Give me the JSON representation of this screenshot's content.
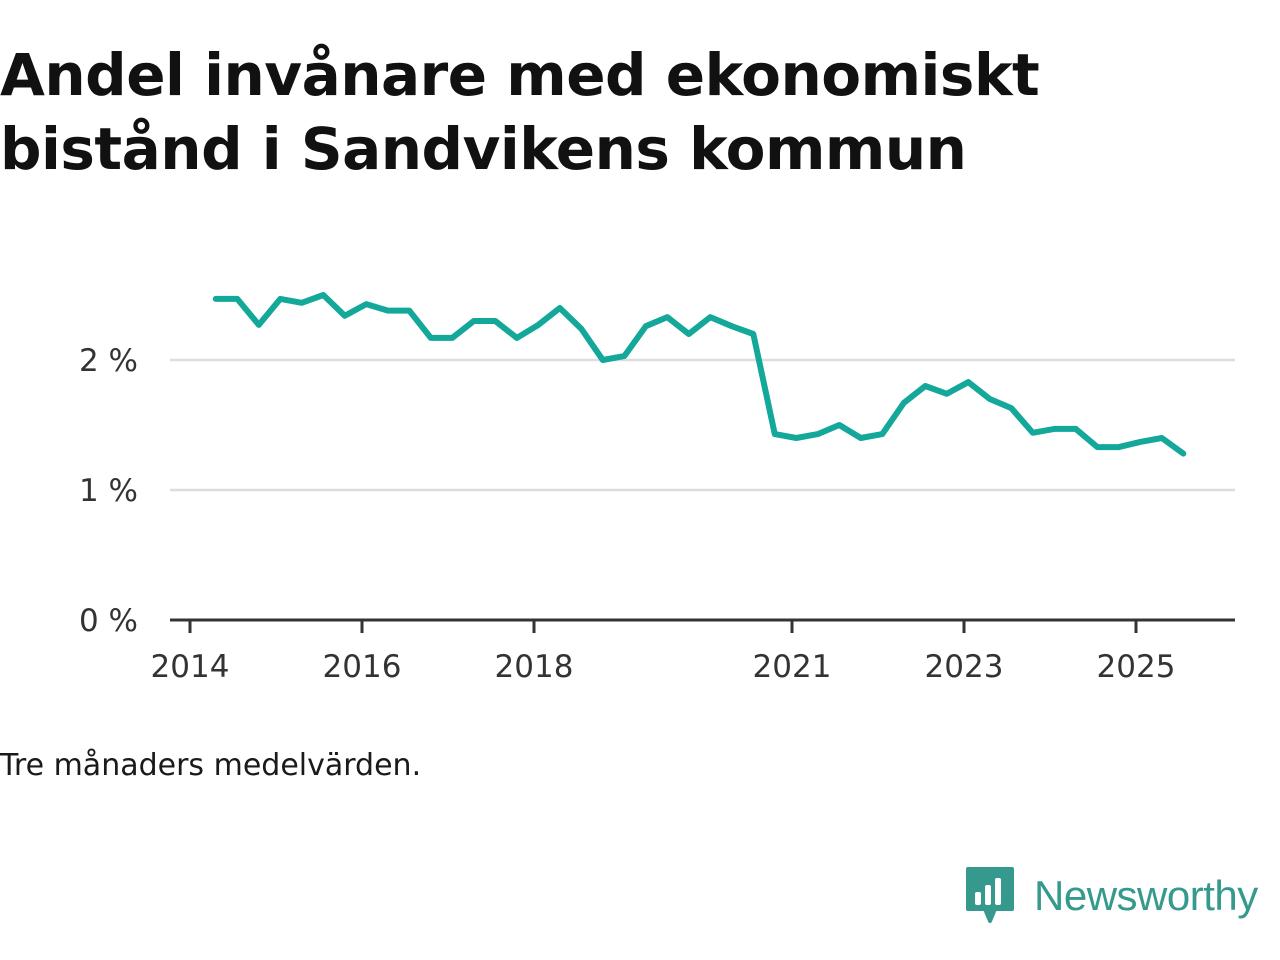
{
  "title": "Andel invånare med ekonomiskt bistånd i Sandvikens kommun",
  "note": "Tre månaders medelvärden.",
  "brand": {
    "name": "Newsworthy",
    "color": "#36998d",
    "icon": "bar-chart-speech-bubble-icon"
  },
  "chart_data": {
    "type": "line",
    "title": "Andel invånare med ekonomiskt bistånd i Sandvikens kommun",
    "xlabel": "",
    "ylabel": "",
    "ylim": [
      0,
      2.5
    ],
    "xlim": [
      2014.0,
      2026.25
    ],
    "grid": true,
    "line_color": "#14a89a",
    "y_ticks": [
      {
        "value": 0,
        "label": "0 %"
      },
      {
        "value": 1,
        "label": "1 %"
      },
      {
        "value": 2,
        "label": "2 %"
      }
    ],
    "x_ticks": [
      {
        "value": 2014,
        "label": "2014"
      },
      {
        "value": 2016,
        "label": "2016"
      },
      {
        "value": 2018,
        "label": "2018"
      },
      {
        "value": 2021,
        "label": "2021"
      },
      {
        "value": 2023,
        "label": "2023"
      },
      {
        "value": 2025,
        "label": "2025"
      }
    ],
    "series": [
      {
        "name": "Andel invånare med ekonomiskt bistånd",
        "x": [
          2014.3,
          2014.55,
          2014.8,
          2015.05,
          2015.3,
          2015.55,
          2015.8,
          2016.05,
          2016.3,
          2016.55,
          2016.8,
          2017.05,
          2017.3,
          2017.55,
          2017.8,
          2018.05,
          2018.3,
          2018.55,
          2018.8,
          2019.05,
          2019.3,
          2019.55,
          2019.8,
          2020.05,
          2020.3,
          2020.55,
          2020.8,
          2021.05,
          2021.3,
          2021.55,
          2021.8,
          2022.05,
          2022.3,
          2022.55,
          2022.8,
          2023.05,
          2023.3,
          2023.55,
          2023.8,
          2024.05,
          2024.3,
          2024.55,
          2024.8,
          2025.05,
          2025.3,
          2025.55
        ],
        "values": [
          2.47,
          2.47,
          2.27,
          2.47,
          2.44,
          2.5,
          2.34,
          2.43,
          2.38,
          2.38,
          2.17,
          2.17,
          2.3,
          2.3,
          2.17,
          2.27,
          2.4,
          2.24,
          2.0,
          2.03,
          2.26,
          2.33,
          2.2,
          2.33,
          2.26,
          2.2,
          1.43,
          1.4,
          1.43,
          1.5,
          1.4,
          1.43,
          1.67,
          1.8,
          1.74,
          1.83,
          1.7,
          1.63,
          1.44,
          1.47,
          1.47,
          1.33,
          1.33,
          1.37,
          1.4,
          1.28
        ]
      }
    ]
  }
}
